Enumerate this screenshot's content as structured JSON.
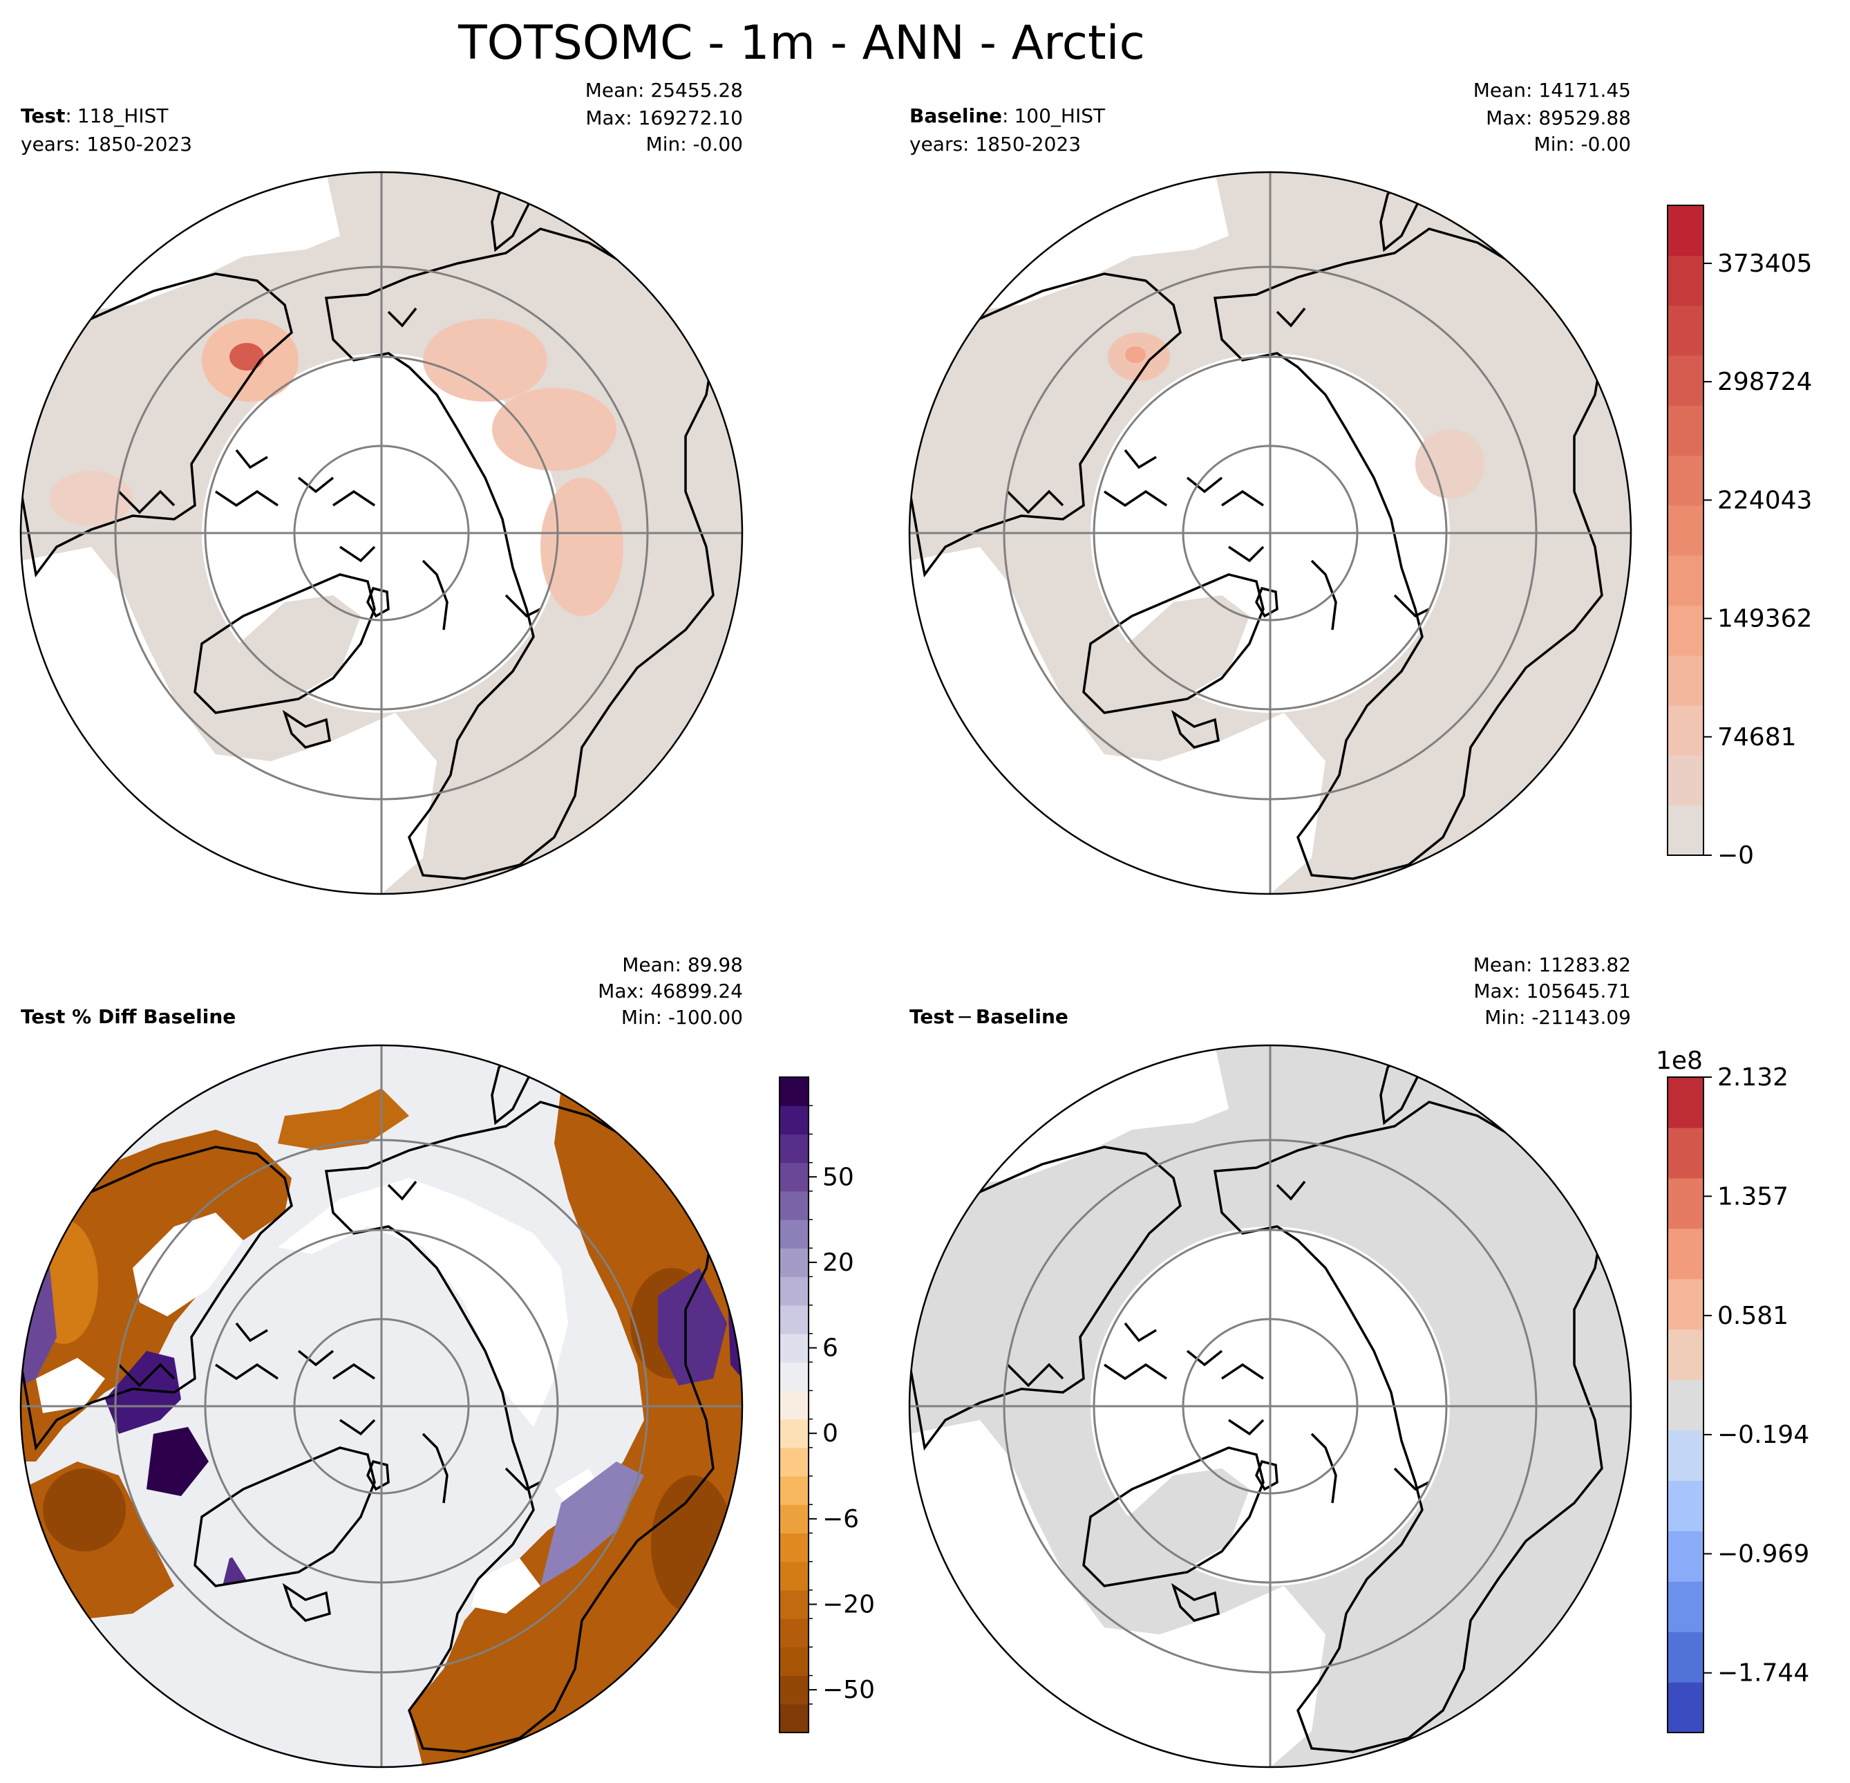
{
  "title": "TOTSOMC - 1m - ANN - Arctic",
  "chart_data": [
    {
      "type": "map",
      "panel": "test",
      "label_bold": "Test",
      "label_sep": ":",
      "label_value": "118_HIST",
      "years": "years: 1850-2023",
      "stats": {
        "mean": "Mean: 25455.28",
        "max": "Max: 169272.10",
        "min": "Min: -0.00"
      },
      "projection": "north-polar-stereographic",
      "colormap": "white-to-red"
    },
    {
      "type": "map",
      "panel": "baseline",
      "label_bold": "Baseline",
      "label_sep": ":",
      "label_value": "100_HIST",
      "years": "years: 1850-2023",
      "stats": {
        "mean": "Mean: 14171.45",
        "max": "Max: 89529.88",
        "min": "Min: -0.00"
      },
      "projection": "north-polar-stereographic",
      "colormap": "white-to-red",
      "colorbar": {
        "ticks": [
          {
            "value": 0,
            "label": "−0"
          },
          {
            "value": 74681,
            "label": "74681"
          },
          {
            "value": 149362,
            "label": "149362"
          },
          {
            "value": 224043,
            "label": "224043"
          },
          {
            "value": 298724,
            "label": "298724"
          },
          {
            "value": 373405,
            "label": "373405"
          }
        ],
        "range": [
          0,
          410000
        ],
        "colors": [
          "#e2dbd6",
          "#ebcfc4",
          "#f2c4b2",
          "#f3b79d",
          "#f4a98a",
          "#f19b7d",
          "#ec8c6e",
          "#e47d64",
          "#dd6d59",
          "#d65c4f",
          "#ce4b45",
          "#c63a3c",
          "#bd2532"
        ]
      }
    },
    {
      "type": "map",
      "panel": "percent-diff",
      "label_bold": "Test % Diff Baseline",
      "stats": {
        "mean": "Mean: 89.98",
        "max": "Max: 46899.24",
        "min": "Min: -100.00"
      },
      "projection": "north-polar-stereographic",
      "colormap": "PuOr_r",
      "colorbar": {
        "ticks": [
          {
            "label": "50"
          },
          {
            "label": "20"
          },
          {
            "label": "6"
          },
          {
            "label": "0"
          },
          {
            "label": "−6"
          },
          {
            "label": "−20"
          },
          {
            "label": "−50"
          }
        ],
        "colors": [
          "#7f3b08",
          "#934707",
          "#a85407",
          "#b35c0b",
          "#c26a10",
          "#d37b14",
          "#e08a21",
          "#eca13d",
          "#f6b75e",
          "#fdca86",
          "#fde0b6",
          "#f8ede0",
          "#eceef2",
          "#dfe0ee",
          "#ccc9e2",
          "#b8b2d5",
          "#a49bc7",
          "#8d80b8",
          "#7a64a7",
          "#6a4897",
          "#572f88",
          "#43177a",
          "#2d004b"
        ]
      }
    },
    {
      "type": "map",
      "panel": "difference",
      "label_bold": "Test",
      "label_sep": "−",
      "label_bold2": "Baseline",
      "stats": {
        "mean": "Mean: 11283.82",
        "max": "Max: 105645.71",
        "min": "Min: -21143.09"
      },
      "projection": "north-polar-stereographic",
      "colormap": "coolwarm",
      "colorbar": {
        "offset_label": "1e8",
        "ticks": [
          {
            "value": 2.132,
            "label": "2.132"
          },
          {
            "value": 1.357,
            "label": "1.357"
          },
          {
            "value": 0.581,
            "label": "0.581"
          },
          {
            "value": -0.194,
            "label": "−0.194"
          },
          {
            "value": -0.969,
            "label": "−0.969"
          },
          {
            "value": -1.744,
            "label": "−1.744"
          }
        ],
        "range": [
          -2.132,
          2.132
        ],
        "colors": [
          "#3b4cc0",
          "#5172d8",
          "#6c91ec",
          "#8aabf8",
          "#a8c4fd",
          "#c4d6f5",
          "#dcdcdc",
          "#f0cdb9",
          "#f6b69a",
          "#f29b7d",
          "#e57b62",
          "#d4574c",
          "#be2c36"
        ]
      }
    }
  ]
}
